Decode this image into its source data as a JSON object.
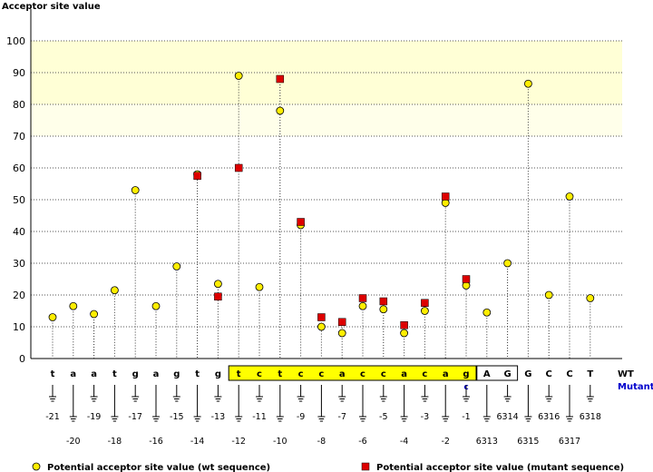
{
  "chart_data": {
    "type": "scatter",
    "title": "",
    "xlabel": "",
    "ylabel": "Acceptor site value",
    "ylim": [
      0,
      100
    ],
    "yticks": [
      "0",
      "10",
      "20",
      "30",
      "40",
      "50",
      "60",
      "70",
      "80",
      "90",
      "100"
    ],
    "highlight_band": [
      80,
      100
    ],
    "fade_band": [
      70,
      80
    ],
    "grid": true,
    "legend_position": "bottom",
    "row_labels": {
      "wt": "WT",
      "mutant": "Mutant"
    },
    "positions": [
      {
        "wt": "t",
        "mut": "",
        "num": "-21",
        "wt_value": 13,
        "mut_value": null
      },
      {
        "wt": "a",
        "mut": "",
        "num": "-20",
        "wt_value": 16.5,
        "mut_value": null
      },
      {
        "wt": "a",
        "mut": "",
        "num": "-19",
        "wt_value": 14,
        "mut_value": null
      },
      {
        "wt": "t",
        "mut": "",
        "num": "-18",
        "wt_value": 21.5,
        "mut_value": null
      },
      {
        "wt": "g",
        "mut": "",
        "num": "-17",
        "wt_value": 53,
        "mut_value": null
      },
      {
        "wt": "a",
        "mut": "",
        "num": "-16",
        "wt_value": 16.5,
        "mut_value": null
      },
      {
        "wt": "g",
        "mut": "",
        "num": "-15",
        "wt_value": 29,
        "mut_value": null
      },
      {
        "wt": "t",
        "mut": "",
        "num": "-14",
        "wt_value": 58,
        "mut_value": 57.5
      },
      {
        "wt": "g",
        "mut": "",
        "num": "-13",
        "wt_value": 23.5,
        "mut_value": 19.5
      },
      {
        "wt": "t",
        "mut": "",
        "num": "-12",
        "wt_value": 89,
        "mut_value": 60
      },
      {
        "wt": "c",
        "mut": "",
        "num": "-11",
        "wt_value": 22.5,
        "mut_value": null
      },
      {
        "wt": "t",
        "mut": "",
        "num": "-10",
        "wt_value": 78,
        "mut_value": 88
      },
      {
        "wt": "c",
        "mut": "",
        "num": "-9",
        "wt_value": 42,
        "mut_value": 43
      },
      {
        "wt": "c",
        "mut": "",
        "num": "-8",
        "wt_value": 10,
        "mut_value": 13
      },
      {
        "wt": "a",
        "mut": "",
        "num": "-7",
        "wt_value": 8,
        "mut_value": 11.5
      },
      {
        "wt": "c",
        "mut": "",
        "num": "-6",
        "wt_value": 16.5,
        "mut_value": 19
      },
      {
        "wt": "c",
        "mut": "",
        "num": "-5",
        "wt_value": 15.5,
        "mut_value": 18
      },
      {
        "wt": "a",
        "mut": "",
        "num": "-4",
        "wt_value": 8,
        "mut_value": 10.5
      },
      {
        "wt": "c",
        "mut": "",
        "num": "-3",
        "wt_value": 15,
        "mut_value": 17.5
      },
      {
        "wt": "a",
        "mut": "",
        "num": "-2",
        "wt_value": 49,
        "mut_value": 51
      },
      {
        "wt": "g",
        "mut": "c",
        "num": "-1",
        "wt_value": 23,
        "mut_value": 25
      },
      {
        "wt": "A",
        "mut": "",
        "num": "6313",
        "wt_value": 14.5,
        "mut_value": null
      },
      {
        "wt": "G",
        "mut": "",
        "num": "6314",
        "wt_value": 30,
        "mut_value": null
      },
      {
        "wt": "G",
        "mut": "",
        "num": "6315",
        "wt_value": 86.5,
        "mut_value": null
      },
      {
        "wt": "C",
        "mut": "",
        "num": "6316",
        "wt_value": 20,
        "mut_value": null
      },
      {
        "wt": "C",
        "mut": "",
        "num": "6317",
        "wt_value": 51,
        "mut_value": null
      },
      {
        "wt": "T",
        "mut": "",
        "num": "6318",
        "wt_value": 19,
        "mut_value": null
      }
    ],
    "yellow_box": {
      "from": 9,
      "to": 20
    },
    "white_box": {
      "from": 21,
      "to": 22
    },
    "series": [
      {
        "name": "Potential acceptor site value (wt sequence)",
        "marker": "circle",
        "color": "#ffee00"
      },
      {
        "name": "Potential acceptor site value (mutant sequence)",
        "marker": "square",
        "color": "#dd0000"
      }
    ]
  }
}
